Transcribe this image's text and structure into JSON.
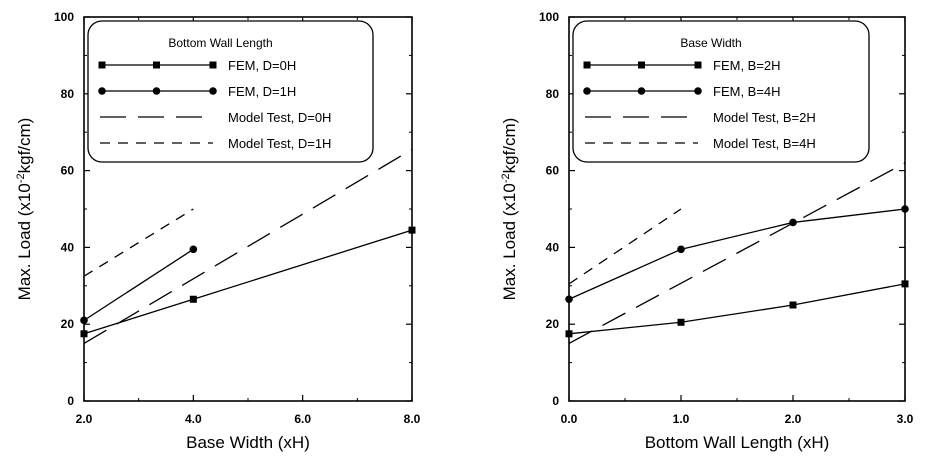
{
  "chart_data": [
    {
      "type": "line",
      "xlabel": "Base Width (xH)",
      "ylabel": "Max. Load (x10",
      "ylabel_sup": "-2",
      "ylabel_tail": "kgf/cm)",
      "xlim": [
        2.0,
        8.0
      ],
      "ylim": [
        0,
        100
      ],
      "xticks": [
        2.0,
        4.0,
        6.0,
        8.0
      ],
      "xtick_labels": [
        "2.0",
        "4.0",
        "6.0",
        "8.0"
      ],
      "yticks": [
        0,
        20,
        40,
        60,
        80,
        100
      ],
      "ytick_labels": [
        "0",
        "20",
        "40",
        "60",
        "80",
        "100"
      ],
      "legend": {
        "title": "Bottom Wall Length",
        "placement": "top-left"
      },
      "series": [
        {
          "name": "FEM, D=0H",
          "style": "solid",
          "marker": "square",
          "x": [
            2.0,
            4.0,
            8.0
          ],
          "y": [
            17.5,
            26.5,
            44.5
          ]
        },
        {
          "name": "FEM, D=1H",
          "style": "solid",
          "marker": "circle",
          "x": [
            2.0,
            4.0
          ],
          "y": [
            21,
            39.5
          ]
        },
        {
          "name": "Model Test, D=0H",
          "style": "longdash",
          "marker": "none",
          "x": [
            2.0,
            8.0
          ],
          "y": [
            15,
            65.5
          ]
        },
        {
          "name": "Model Test, D=1H",
          "style": "shortdash",
          "marker": "none",
          "x": [
            2.0,
            4.0
          ],
          "y": [
            32.5,
            50
          ]
        }
      ]
    },
    {
      "type": "line",
      "xlabel": "Bottom Wall Length (xH)",
      "ylabel": "Max. Load (x10",
      "ylabel_sup": "-2",
      "ylabel_tail": "kgf/cm)",
      "xlim": [
        0.0,
        3.0
      ],
      "ylim": [
        0,
        100
      ],
      "xticks": [
        0.0,
        1.0,
        2.0,
        3.0
      ],
      "xtick_labels": [
        "0.0",
        "1.0",
        "2.0",
        "3.0"
      ],
      "yticks": [
        0,
        20,
        40,
        60,
        80,
        100
      ],
      "ytick_labels": [
        "0",
        "20",
        "40",
        "60",
        "80",
        "100"
      ],
      "legend": {
        "title": "Base Width",
        "placement": "top-left"
      },
      "series": [
        {
          "name": "FEM, B=2H",
          "style": "solid",
          "marker": "square",
          "x": [
            0.0,
            1.0,
            2.0,
            3.0
          ],
          "y": [
            17.5,
            20.5,
            25,
            30.5
          ]
        },
        {
          "name": "FEM, B=4H",
          "style": "solid",
          "marker": "circle",
          "x": [
            0.0,
            1.0,
            2.0,
            3.0
          ],
          "y": [
            26.5,
            39.5,
            46.5,
            50
          ]
        },
        {
          "name": "Model Test, B=2H",
          "style": "longdash",
          "marker": "none",
          "x": [
            0.0,
            3.0
          ],
          "y": [
            15,
            62
          ]
        },
        {
          "name": "Model Test, B=4H",
          "style": "shortdash",
          "marker": "none",
          "x": [
            0.0,
            1.0
          ],
          "y": [
            30.5,
            50
          ]
        }
      ]
    }
  ]
}
